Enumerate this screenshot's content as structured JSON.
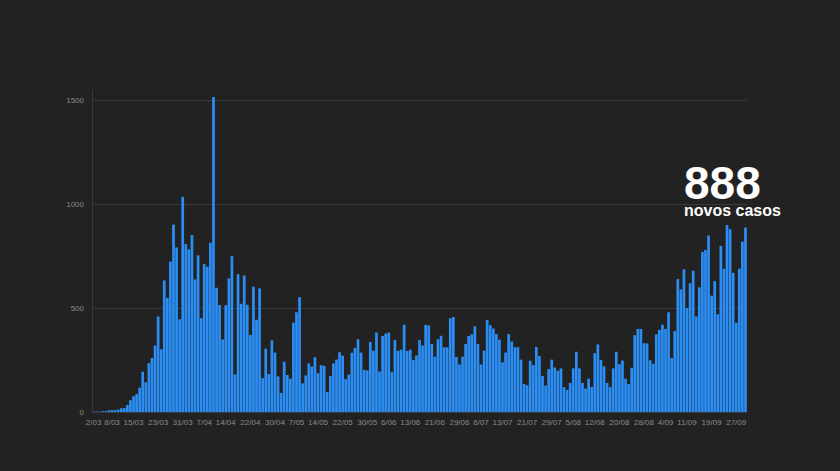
{
  "chart_data": {
    "type": "bar",
    "categories": [
      "2/03",
      null,
      null,
      null,
      null,
      null,
      "8/03",
      null,
      null,
      null,
      null,
      null,
      null,
      "15/03",
      null,
      null,
      null,
      null,
      null,
      null,
      null,
      "23/03",
      null,
      null,
      null,
      null,
      null,
      null,
      null,
      "31/03",
      null,
      null,
      null,
      null,
      null,
      null,
      "7/04",
      null,
      null,
      null,
      null,
      null,
      null,
      "14/04",
      null,
      null,
      null,
      null,
      null,
      null,
      null,
      "22/04",
      null,
      null,
      null,
      null,
      null,
      null,
      null,
      "30/04",
      null,
      null,
      null,
      null,
      null,
      null,
      "7/05",
      null,
      null,
      null,
      null,
      null,
      null,
      "14/05",
      null,
      null,
      null,
      null,
      null,
      null,
      null,
      "22/05",
      null,
      null,
      null,
      null,
      null,
      null,
      null,
      "30/05",
      null,
      null,
      null,
      null,
      null,
      null,
      "6/06",
      null,
      null,
      null,
      null,
      null,
      null,
      "13/06",
      null,
      null,
      null,
      null,
      null,
      null,
      null,
      "21/06",
      null,
      null,
      null,
      null,
      null,
      null,
      null,
      "29/06",
      null,
      null,
      null,
      null,
      null,
      null,
      "6/07",
      null,
      null,
      null,
      null,
      null,
      null,
      "13/07",
      null,
      null,
      null,
      null,
      null,
      null,
      null,
      "21/07",
      null,
      null,
      null,
      null,
      null,
      null,
      null,
      "29/07",
      null,
      null,
      null,
      null,
      null,
      null,
      "5/08",
      null,
      null,
      null,
      null,
      null,
      null,
      "12/08",
      null,
      null,
      null,
      null,
      null,
      null,
      null,
      "20/08",
      null,
      null,
      null,
      null,
      null,
      null,
      null,
      "28/08",
      null,
      null,
      null,
      null,
      null,
      null,
      "4/09",
      null,
      null,
      null,
      null,
      null,
      null,
      "11/09",
      null,
      null,
      null,
      null,
      null,
      null,
      null,
      "19/09",
      null,
      null,
      null,
      null,
      null,
      null,
      null,
      "27/09",
      null,
      null,
      null
    ],
    "values": [
      2,
      2,
      1,
      4,
      4,
      8,
      9,
      9,
      11,
      18,
      19,
      34,
      57,
      76,
      86,
      117,
      194,
      143,
      235,
      260,
      320,
      460,
      302,
      633,
      549,
      724,
      902,
      792,
      446,
      1035,
      808,
      783,
      852,
      638,
      754,
      452,
      712,
      699,
      815,
      1516,
      598,
      515,
      349,
      514,
      643,
      750,
      181,
      663,
      521,
      657,
      516,
      371,
      603,
      444,
      595,
      163,
      305,
      183,
      345,
      286,
      171,
      92,
      242,
      178,
      160,
      430,
      480,
      553,
      138,
      176,
      234,
      219,
      264,
      187,
      226,
      222,
      96,
      173,
      234,
      252,
      288,
      271,
      159,
      180,
      285,
      308,
      350,
      286,
      203,
      200,
      337,
      295,
      383,
      195,
      366,
      377,
      382,
      192,
      346,
      294,
      300,
      420,
      294,
      300,
      250,
      272,
      346,
      320,
      419,
      417,
      328,
      266,
      350,
      367,
      311,
      311,
      451,
      457,
      265,
      229,
      266,
      328,
      366,
      374,
      413,
      328,
      229,
      295,
      443,
      418,
      402,
      375,
      348,
      239,
      286,
      375,
      339,
      312,
      312,
      252,
      135,
      129,
      247,
      226,
      313,
      269,
      174,
      127,
      206,
      252,
      214,
      198,
      210,
      120,
      106,
      140,
      210,
      290,
      210,
      140,
      113,
      160,
      120,
      283,
      325,
      250,
      220,
      140,
      120,
      210,
      290,
      230,
      248,
      160,
      135,
      213,
      370,
      400,
      400,
      331,
      330,
      249,
      232,
      374,
      395,
      420,
      400,
      480,
      260,
      390,
      640,
      590,
      687,
      500,
      620,
      680,
      460,
      600,
      770,
      780,
      850,
      560,
      630,
      470,
      800,
      690,
      900,
      880,
      670,
      430,
      690,
      820,
      888
    ],
    "color": "#2b8ef5",
    "ylim": [
      0,
      1550
    ],
    "yticks": [
      0,
      500,
      1000,
      1500
    ],
    "grid": true,
    "annotations": [
      {
        "text": "888"
      },
      {
        "text": "novos casos"
      }
    ]
  }
}
